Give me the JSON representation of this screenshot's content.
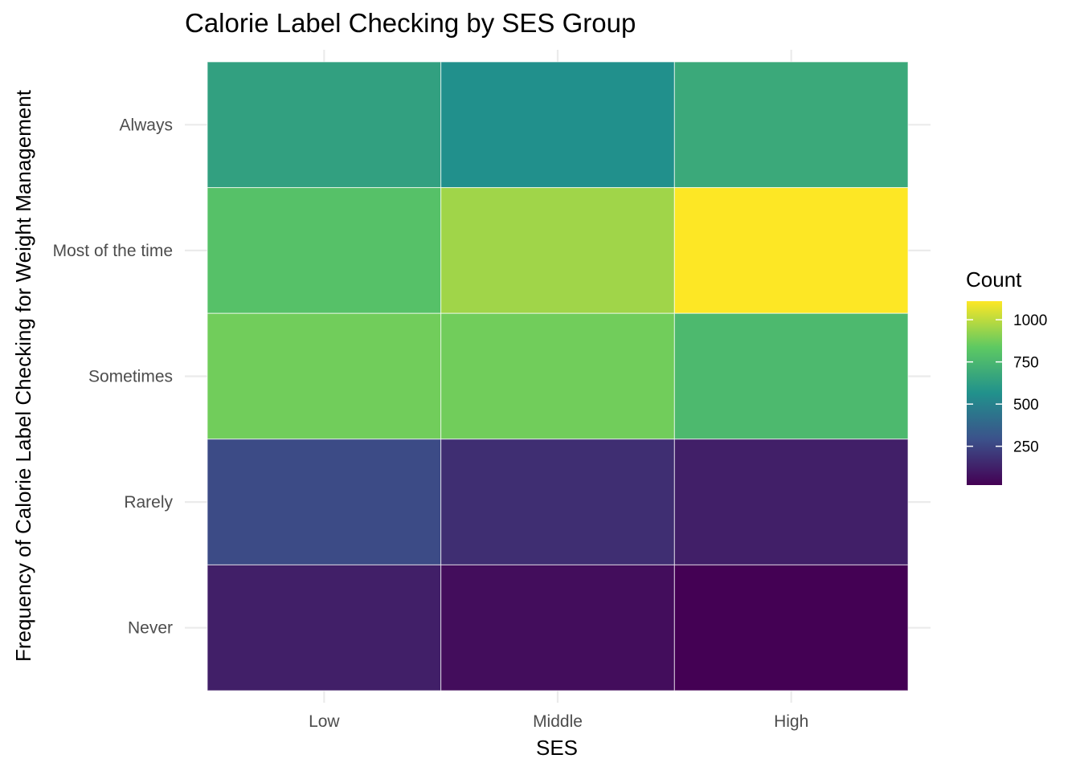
{
  "chart_data": {
    "type": "heatmap",
    "title": "Calorie Label Checking by SES Group",
    "xlabel": "SES",
    "ylabel": "Frequency of Calorie Label Checking for Weight Management",
    "x_categories": [
      "Low",
      "Middle",
      "High"
    ],
    "y_categories": [
      "Always",
      "Most of the time",
      "Sometimes",
      "Rarely",
      "Never"
    ],
    "values": [
      [
        640,
        560,
        680
      ],
      [
        800,
        950,
        1110
      ],
      [
        870,
        870,
        760
      ],
      [
        270,
        170,
        120
      ],
      [
        120,
        60,
        20
      ]
    ],
    "legend": {
      "title": "Count",
      "ticks": [
        250,
        500,
        750,
        1000
      ],
      "range": [
        20,
        1110
      ],
      "placement": "right"
    },
    "colormap": [
      "#440154",
      "#3b528b",
      "#21918c",
      "#5ec962",
      "#fde725"
    ],
    "grid": true
  }
}
